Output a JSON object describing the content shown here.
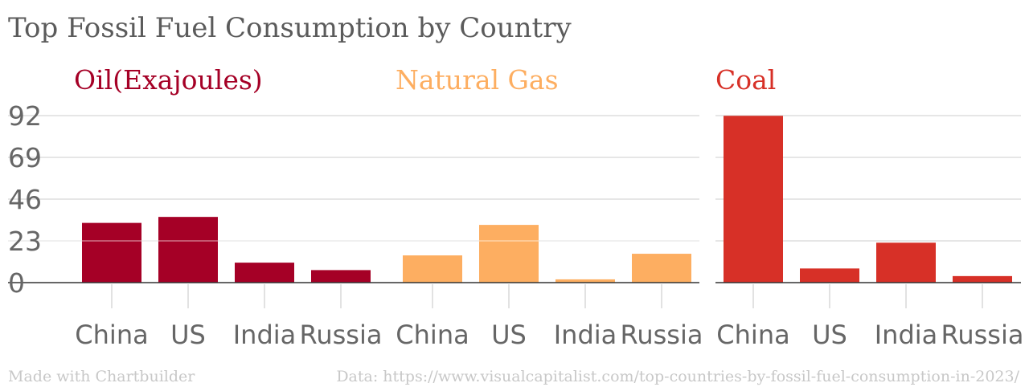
{
  "title": "Top Fossil Fuel Consumption by Country",
  "footer": {
    "left": "Made with Chartbuilder",
    "right": "Data: https://www.visualcapitalist.com/top-countries-by-fossil-fuel-consumption-in-2023/"
  },
  "chart_data": {
    "type": "bar",
    "title": "Top Fossil Fuel Consumption by Country",
    "ylim": [
      0,
      92
    ],
    "yticks": [
      0,
      23,
      46,
      69,
      92
    ],
    "grid": true,
    "categories": [
      "China",
      "US",
      "India",
      "Russia"
    ],
    "series": [
      {
        "name": "Oil(Exajoules)",
        "color": "#a50026",
        "values": [
          32.9,
          36.2,
          11.0,
          6.9
        ]
      },
      {
        "name": "Natural Gas",
        "color": "#fdae61",
        "values": [
          15.0,
          31.8,
          1.8,
          15.9
        ]
      },
      {
        "name": "Coal",
        "color": "#d73027",
        "values": [
          91.9,
          7.8,
          22.0,
          3.6
        ]
      }
    ]
  }
}
